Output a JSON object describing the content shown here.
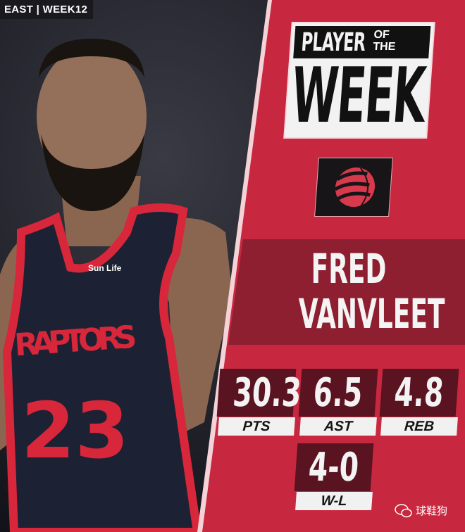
{
  "tag": "EAST | WEEK12",
  "title": {
    "line1": "PLAYER",
    "line2a": "OF",
    "line2b": "THE",
    "line3": "WEEK"
  },
  "team_logo": "raptors-claw-ball-logo",
  "player": {
    "first": "FRED",
    "last": "VANVLEET"
  },
  "jersey": {
    "team": "RAPTORS",
    "number": "23",
    "sponsor": "Sun Life"
  },
  "stats": [
    {
      "value": "30.3",
      "label": "PTS"
    },
    {
      "value": "6.5",
      "label": "AST"
    },
    {
      "value": "4.8",
      "label": "REB"
    },
    {
      "value": "4-0",
      "label": "W-L"
    }
  ],
  "watermark": "球鞋狗",
  "colors": {
    "panel": "#c8283f",
    "band": "#8e1f30",
    "stat_box": "#5a1320",
    "jersey": "#1c2233",
    "trim": "#d8263b"
  }
}
